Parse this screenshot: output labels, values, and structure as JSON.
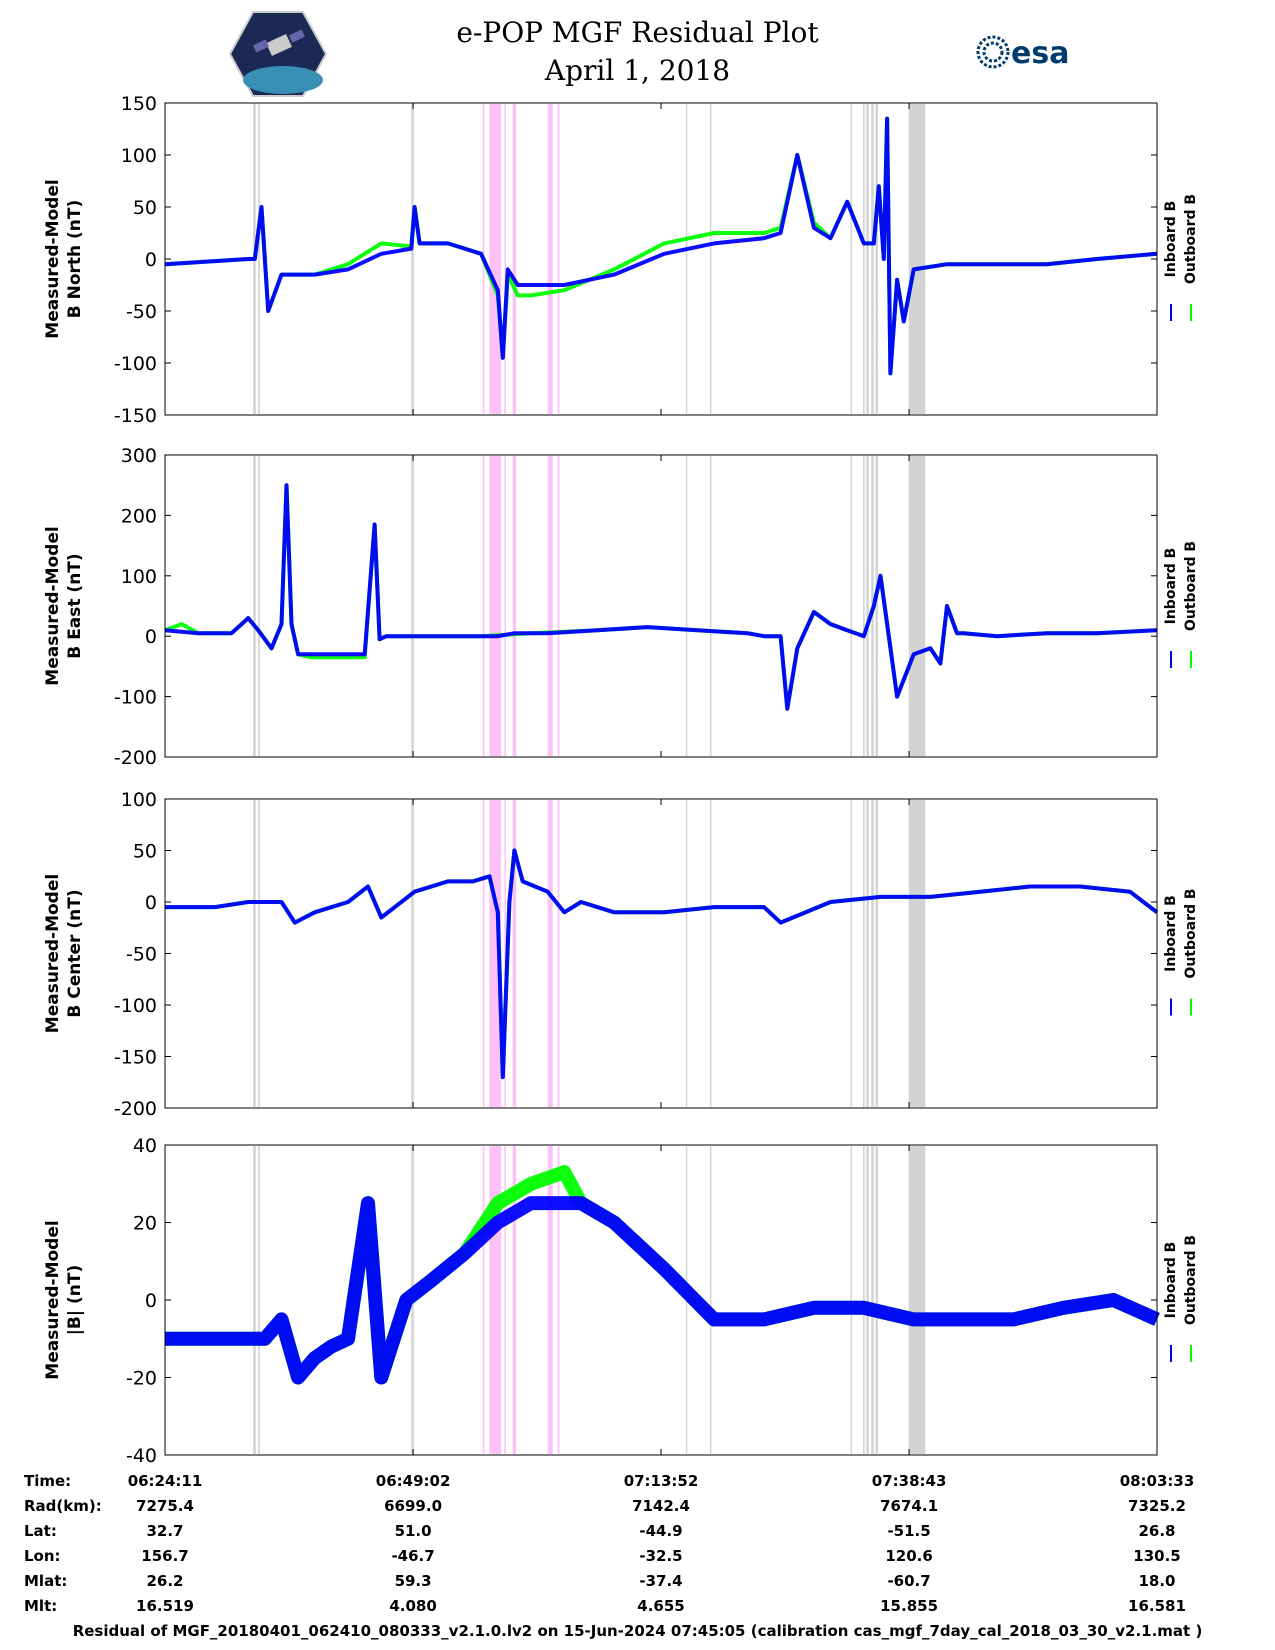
{
  "title_line1": "e-POP MGF Residual Plot",
  "title_line2": "April 1, 2018",
  "logos": {
    "left": "cassiope-mission-logo",
    "right": "esa-logo",
    "esa_text": "esa"
  },
  "legend": {
    "inboard": "Inboard B",
    "outboard": "Outboard B"
  },
  "colors": {
    "inboard": "#0000ff",
    "outboard": "#00ff00",
    "gap_gray": "#d3d3d3",
    "gap_pink": "#ffc0f8"
  },
  "time_axis": {
    "start_seconds": 0,
    "end_seconds": 5962,
    "tick_seconds": [
      0,
      1491,
      2981,
      4472,
      5962
    ]
  },
  "table": {
    "rows": [
      {
        "label": "Time:",
        "values": [
          "06:24:11",
          "06:49:02",
          "07:13:52",
          "07:38:43",
          "08:03:33"
        ]
      },
      {
        "label": "Rad(km):",
        "values": [
          "7275.4",
          "6699.0",
          "7142.4",
          "7674.1",
          "7325.2"
        ]
      },
      {
        "label": "Lat:",
        "values": [
          "32.7",
          "51.0",
          "-44.9",
          "-51.5",
          "26.8"
        ]
      },
      {
        "label": "Lon:",
        "values": [
          "156.7",
          "-46.7",
          "-32.5",
          "120.6",
          "130.5"
        ]
      },
      {
        "label": "Mlat:",
        "values": [
          "26.2",
          "59.3",
          "-37.4",
          "-60.7",
          "18.0"
        ]
      },
      {
        "label": "Mlt:",
        "values": [
          "16.519",
          "4.080",
          "4.655",
          "15.855",
          "16.581"
        ]
      }
    ]
  },
  "footer": "Residual of MGF_20180401_062410_080333_v2.1.0.lv2 on 15-Jun-2024 07:45:05 (calibration cas_mgf_7day_cal_2018_03_30_v2.1.mat )",
  "chart_data": [
    {
      "type": "line",
      "ylabel": [
        "Measured-Model",
        "B North (nT)"
      ],
      "ylim": [
        -150,
        150
      ],
      "yticks": [
        150,
        100,
        50,
        0,
        -50,
        -100,
        -150
      ],
      "series": [
        {
          "name": "Inboard B",
          "x": [
            0,
            300,
            500,
            540,
            580,
            620,
            700,
            900,
            1100,
            1300,
            1480,
            1500,
            1530,
            1700,
            1900,
            2000,
            2030,
            2060,
            2120,
            2200,
            2400,
            2700,
            3000,
            3300,
            3600,
            3700,
            3800,
            3900,
            4000,
            4100,
            4200,
            4260,
            4290,
            4320,
            4340,
            4360,
            4400,
            4440,
            4500,
            4700,
            5000,
            5300,
            5600,
            5962
          ],
          "y": [
            -5,
            -2,
            0,
            0,
            50,
            -50,
            -15,
            -15,
            -10,
            5,
            10,
            50,
            15,
            15,
            5,
            -30,
            -95,
            -10,
            -25,
            -25,
            -25,
            -15,
            5,
            15,
            20,
            25,
            100,
            30,
            20,
            55,
            15,
            15,
            70,
            0,
            135,
            -110,
            -20,
            -60,
            -10,
            -5,
            -5,
            -5,
            0,
            5
          ]
        },
        {
          "name": "Outboard B",
          "x": [
            0,
            300,
            500,
            540,
            580,
            620,
            700,
            900,
            1100,
            1300,
            1480,
            1500,
            1530,
            1700,
            1900,
            2000,
            2030,
            2060,
            2120,
            2200,
            2400,
            2700,
            3000,
            3300,
            3600,
            3700,
            3800,
            3900,
            4000,
            4100,
            4200,
            4260,
            4290,
            4320,
            4340,
            4360,
            4400,
            4440,
            4500,
            4700,
            5000,
            5300,
            5600,
            5962
          ],
          "y": [
            -5,
            -2,
            0,
            0,
            50,
            -50,
            -15,
            -15,
            -5,
            15,
            12,
            50,
            15,
            15,
            5,
            -35,
            -95,
            -15,
            -35,
            -35,
            -30,
            -10,
            15,
            25,
            25,
            30,
            100,
            35,
            20,
            55,
            15,
            15,
            70,
            0,
            135,
            -110,
            -20,
            -60,
            -10,
            -5,
            -5,
            -5,
            0,
            5
          ]
        }
      ]
    },
    {
      "type": "line",
      "ylabel": [
        "Measured-Model",
        "B East (nT)"
      ],
      "ylim": [
        -200,
        300
      ],
      "yticks": [
        300,
        200,
        100,
        0,
        -100,
        -200
      ],
      "series": [
        {
          "name": "Inboard B",
          "x": [
            0,
            200,
            400,
            500,
            560,
            640,
            700,
            730,
            760,
            800,
            820,
            880,
            1000,
            1200,
            1260,
            1290,
            1330,
            1400,
            1600,
            1900,
            2000,
            2100,
            2300,
            2600,
            2900,
            3200,
            3500,
            3600,
            3700,
            3740,
            3800,
            3900,
            4000,
            4100,
            4200,
            4260,
            4300,
            4350,
            4400,
            4500,
            4600,
            4660,
            4700,
            4760,
            4800,
            5000,
            5300,
            5600,
            5962
          ],
          "y": [
            10,
            5,
            5,
            30,
            10,
            -20,
            20,
            250,
            20,
            -30,
            -30,
            -30,
            -30,
            -30,
            185,
            -5,
            0,
            0,
            0,
            0,
            0,
            5,
            5,
            10,
            15,
            10,
            5,
            0,
            0,
            -120,
            -20,
            40,
            20,
            10,
            0,
            50,
            100,
            0,
            -100,
            -30,
            -20,
            -45,
            50,
            5,
            5,
            0,
            5,
            5,
            10
          ]
        },
        {
          "name": "Outboard B",
          "x": [
            0,
            100,
            200,
            400,
            500,
            560,
            640,
            700,
            730,
            760,
            800,
            880,
            1000,
            1200,
            1260,
            1290,
            1330,
            1400,
            1600,
            1900,
            2200,
            2600,
            2900,
            3200,
            3500,
            3600,
            3700,
            3740,
            3800,
            3900,
            4000,
            4100,
            4200,
            4260,
            4300,
            4350,
            4400,
            4500,
            4600,
            4660,
            4700,
            4760,
            4800,
            5000,
            5300,
            5600,
            5962
          ],
          "y": [
            10,
            20,
            5,
            5,
            30,
            10,
            -20,
            20,
            250,
            20,
            -30,
            -35,
            -35,
            -35,
            185,
            -5,
            0,
            0,
            0,
            0,
            5,
            10,
            15,
            10,
            5,
            0,
            0,
            -120,
            -20,
            40,
            20,
            10,
            0,
            50,
            100,
            0,
            -100,
            -30,
            -20,
            -45,
            50,
            5,
            5,
            0,
            5,
            5,
            10
          ]
        }
      ]
    },
    {
      "type": "line",
      "ylabel": [
        "Measured-Model",
        "B Center (nT)"
      ],
      "ylim": [
        -200,
        100
      ],
      "yticks": [
        100,
        50,
        0,
        -50,
        -100,
        -150,
        -200
      ],
      "series": [
        {
          "name": "Inboard B",
          "x": [
            0,
            300,
            500,
            540,
            600,
            700,
            780,
            900,
            1100,
            1220,
            1300,
            1500,
            1700,
            1850,
            1950,
            2000,
            2030,
            2070,
            2100,
            2150,
            2300,
            2400,
            2500,
            2700,
            3000,
            3300,
            3600,
            3700,
            4000,
            4300,
            4600,
            4900,
            5200,
            5500,
            5800,
            5962
          ],
          "y": [
            -5,
            -5,
            0,
            0,
            0,
            0,
            -20,
            -10,
            0,
            15,
            -15,
            10,
            20,
            20,
            25,
            -10,
            -170,
            0,
            50,
            20,
            10,
            -10,
            0,
            -10,
            -10,
            -5,
            -5,
            -20,
            0,
            5,
            5,
            10,
            15,
            15,
            10,
            -10
          ]
        },
        {
          "name": "Outboard B",
          "x": [
            0,
            300,
            500,
            540,
            600,
            700,
            780,
            900,
            1100,
            1220,
            1300,
            1500,
            1700,
            1850,
            1950,
            2000,
            2030,
            2070,
            2100,
            2150,
            2300,
            2400,
            2500,
            2700,
            3000,
            3300,
            3600,
            3700,
            4000,
            4300,
            4600,
            4900,
            5200,
            5500,
            5800,
            5962
          ],
          "y": [
            -5,
            -5,
            0,
            0,
            0,
            0,
            -20,
            -10,
            0,
            15,
            -15,
            10,
            20,
            20,
            25,
            -10,
            -170,
            0,
            50,
            20,
            10,
            -10,
            0,
            -10,
            -10,
            -5,
            -5,
            -20,
            0,
            5,
            5,
            10,
            15,
            15,
            10,
            -10
          ]
        }
      ]
    },
    {
      "type": "line",
      "ylabel": [
        "Measured-Model",
        "|B| (nT)"
      ],
      "ylim": [
        -40,
        40
      ],
      "yticks": [
        40,
        20,
        0,
        -20,
        -40
      ],
      "series": [
        {
          "name": "Inboard B",
          "x": [
            0,
            300,
            600,
            700,
            800,
            900,
            1000,
            1100,
            1220,
            1300,
            1450,
            1600,
            1800,
            2000,
            2200,
            2400,
            2500,
            2700,
            3000,
            3300,
            3600,
            3900,
            4200,
            4500,
            4800,
            5100,
            5400,
            5700,
            5962
          ],
          "y": [
            -10,
            -10,
            -10,
            -5,
            -20,
            -15,
            -12,
            -10,
            25,
            -20,
            0,
            5,
            12,
            20,
            25,
            25,
            25,
            20,
            8,
            -5,
            -5,
            -2,
            -2,
            -5,
            -5,
            -5,
            -2,
            0,
            -5
          ]
        },
        {
          "name": "Outboard B",
          "x": [
            0,
            300,
            600,
            700,
            800,
            900,
            1000,
            1100,
            1220,
            1300,
            1450,
            1600,
            1800,
            2000,
            2200,
            2400,
            2500,
            2700,
            3000,
            3300,
            3600,
            3900,
            4200,
            4500,
            4800,
            5100,
            5400,
            5700,
            5962
          ],
          "y": [
            -10,
            -10,
            -10,
            -5,
            -20,
            -15,
            -12,
            -10,
            25,
            -20,
            0,
            5,
            12,
            25,
            30,
            33,
            25,
            20,
            8,
            -5,
            -5,
            -2,
            -2,
            -5,
            -5,
            -5,
            -2,
            0,
            -5
          ]
        }
      ]
    }
  ],
  "gap_bands": {
    "gray": [
      [
        530,
        545
      ],
      [
        560,
        570
      ],
      [
        1480,
        1495
      ],
      [
        3130,
        3135
      ],
      [
        3275,
        3280
      ],
      [
        4120,
        4125
      ],
      [
        4195,
        4205
      ],
      [
        4215,
        4230
      ],
      [
        4245,
        4260
      ],
      [
        4270,
        4285
      ],
      [
        4470,
        4570
      ]
    ],
    "pink": [
      [
        1910,
        1920
      ],
      [
        1950,
        2020
      ],
      [
        2040,
        2045
      ],
      [
        2090,
        2110
      ],
      [
        2300,
        2330
      ],
      [
        2360,
        2370
      ]
    ]
  }
}
